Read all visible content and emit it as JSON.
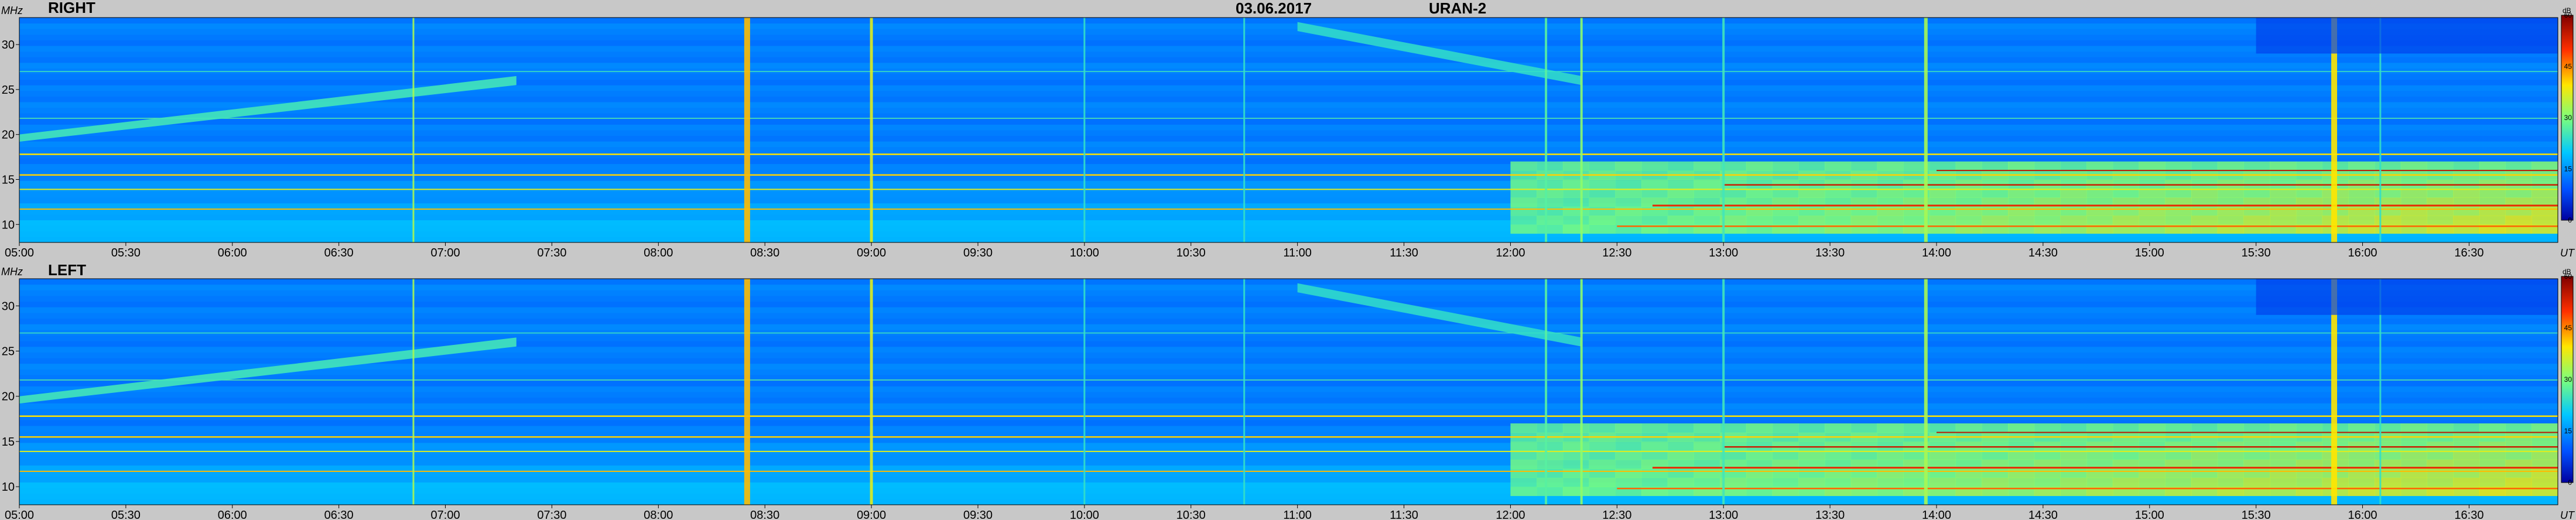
{
  "header": {
    "date": "03.06.2017",
    "instrument": "URAN-2"
  },
  "chart_data": [
    {
      "type": "heatmap",
      "panel": "RIGHT",
      "title": "",
      "xlabel": "UT",
      "ylabel": "MHz",
      "x_range": [
        "05:00",
        "16:55"
      ],
      "y_range": [
        8,
        33
      ],
      "x_ticks": [
        "05:00",
        "05:30",
        "06:00",
        "06:30",
        "07:00",
        "07:30",
        "08:00",
        "08:30",
        "09:00",
        "09:30",
        "10:00",
        "10:30",
        "11:00",
        "11:30",
        "12:00",
        "12:30",
        "13:00",
        "13:30",
        "14:00",
        "14:30",
        "15:00",
        "15:30",
        "16:00",
        "16:30"
      ],
      "y_ticks": [
        10,
        15,
        20,
        25,
        30
      ],
      "colorbar": {
        "unit": "dB",
        "range": [
          0,
          60
        ],
        "ticks": [
          0,
          15,
          30,
          45,
          60
        ]
      }
    },
    {
      "type": "heatmap",
      "panel": "LEFT",
      "title": "",
      "xlabel": "UT",
      "ylabel": "MHz",
      "x_range": [
        "05:00",
        "16:55"
      ],
      "y_range": [
        8,
        33
      ],
      "x_ticks": [
        "05:00",
        "05:30",
        "06:00",
        "06:30",
        "07:00",
        "07:30",
        "08:00",
        "08:30",
        "09:00",
        "09:30",
        "10:00",
        "10:30",
        "11:00",
        "11:30",
        "12:00",
        "12:30",
        "13:00",
        "13:30",
        "14:00",
        "14:30",
        "15:00",
        "15:30",
        "16:00",
        "16:30"
      ],
      "y_ticks": [
        10,
        15,
        20,
        25,
        30
      ],
      "colorbar": {
        "unit": "dB",
        "range": [
          0,
          60
        ],
        "ticks": [
          0,
          15,
          30,
          45,
          60
        ]
      }
    }
  ]
}
